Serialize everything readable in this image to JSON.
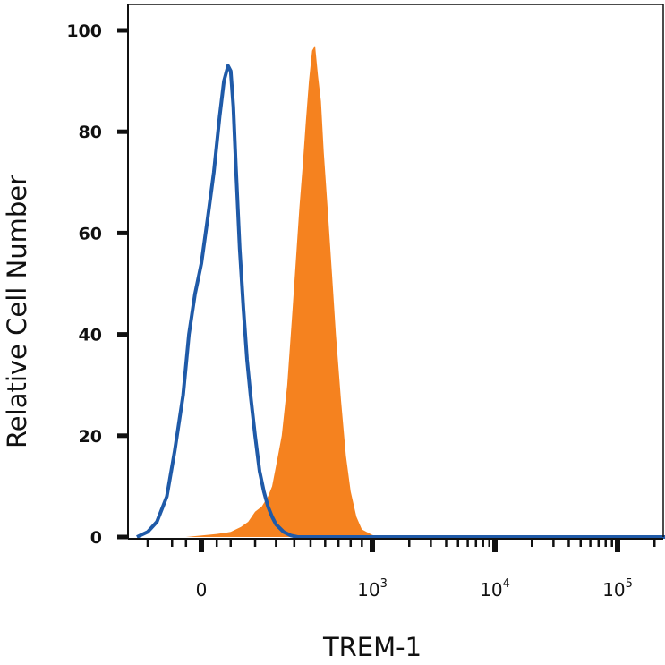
{
  "chart_data": {
    "type": "area",
    "title": "",
    "xlabel": "TREM-1",
    "ylabel": "Relative Cell Number",
    "xscale": "biexponential",
    "ylim": [
      0,
      100
    ],
    "yticks": [
      0,
      20,
      40,
      60,
      80,
      100
    ],
    "xticks": [
      {
        "value": 0,
        "label": "0",
        "sup": ""
      },
      {
        "value": 1000,
        "label": "10",
        "sup": "3"
      },
      {
        "value": 10000,
        "label": "10",
        "sup": "4"
      },
      {
        "value": 100000,
        "label": "10",
        "sup": "5"
      }
    ],
    "grid": false,
    "legend": "none",
    "series": [
      {
        "style": "filled",
        "color": "#f5821f",
        "x": [
          -150,
          -50,
          50,
          100,
          140,
          170,
          200,
          230,
          260,
          280,
          300,
          330,
          360,
          390,
          410,
          430,
          450,
          470,
          490,
          510,
          530,
          550,
          570,
          590,
          620,
          650,
          680,
          720,
          760,
          800,
          850,
          900,
          1000,
          1200
        ],
        "y": [
          0,
          0,
          0.6,
          1,
          2,
          3,
          5,
          6,
          8,
          10,
          14,
          20,
          30,
          45,
          55,
          65,
          73,
          82,
          90,
          96,
          97,
          91,
          86,
          76,
          64,
          52,
          40,
          27,
          16,
          9,
          4,
          1.5,
          0.4,
          0
        ]
      },
      {
        "style": "outline",
        "color": "#1f5aa8",
        "x": [
          -250,
          -200,
          -160,
          -120,
          -90,
          -60,
          -40,
          -20,
          0,
          20,
          40,
          60,
          75,
          90,
          100,
          110,
          120,
          135,
          150,
          165,
          180,
          200,
          220,
          240,
          260,
          280,
          300,
          340,
          380,
          420,
          500,
          800,
          100000,
          350000
        ],
        "y": [
          0,
          1,
          3,
          8,
          17,
          28,
          40,
          48,
          54,
          63,
          72,
          83,
          90,
          93,
          92,
          85,
          73,
          57,
          45,
          35,
          28,
          20,
          13,
          9,
          6,
          4,
          2.5,
          1,
          0.3,
          0,
          0,
          0,
          0,
          0
        ]
      }
    ]
  }
}
